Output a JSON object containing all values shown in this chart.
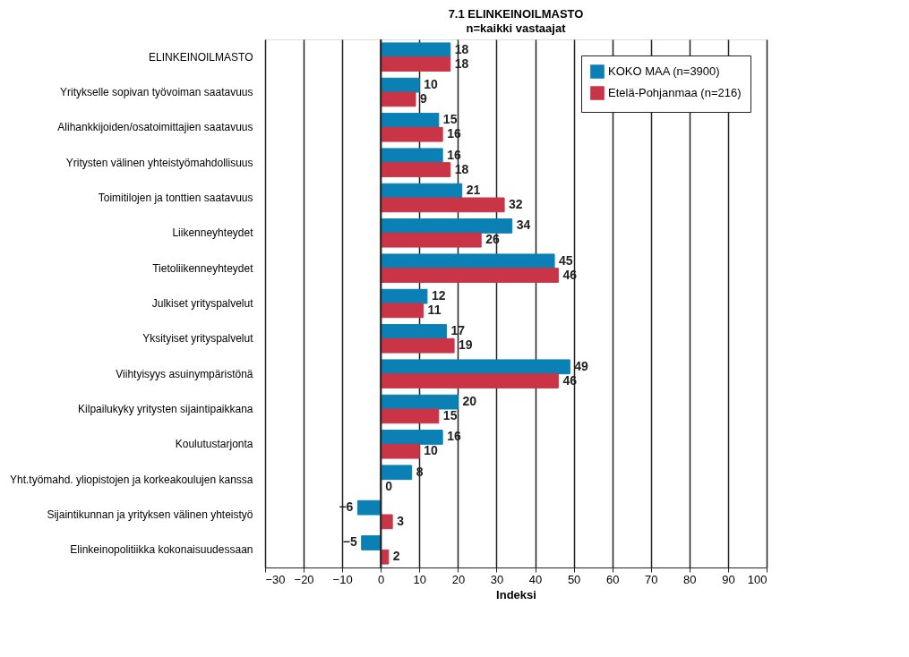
{
  "chart_data": {
    "type": "bar",
    "orientation": "horizontal",
    "title": "7.1 ELINKEINOILMASTO",
    "subtitle": "n=kaikki vastaajat",
    "xlabel": "Indeksi",
    "categories": [
      "ELINKEINOILMASTO",
      "Yritykselle sopivan työvoiman saatavuus",
      "Alihankkijoiden/osatoimittajien saatavuus",
      "Yritysten välinen yhteistyömahdollisuus",
      "Toimitilojen ja tonttien saatavuus",
      "Liikenneyhteydet",
      "Tietoliikenneyhteydet",
      "Julkiset yrityspalvelut",
      "Yksityiset yrityspalvelut",
      "Viihtyisyys asuinympäristönä",
      "Kilpailukyky yritysten sijaintipaikkana",
      "Koulutustarjonta",
      "Yht.työmahd. yliopistojen ja korkeakoulujen kanssa",
      "Sijaintikunnan ja yrityksen välinen yhteistyö",
      "Elinkeinopolitiikka kokonaisuudessaan"
    ],
    "series": [
      {
        "name": "KOKO MAA (n=3900)",
        "color": "#0a80b4",
        "values": [
          18,
          10,
          15,
          16,
          21,
          34,
          45,
          12,
          17,
          49,
          20,
          16,
          8,
          -6,
          -5
        ]
      },
      {
        "name": "Etelä-Pohjanmaa (n=216)",
        "color": "#c93447",
        "values": [
          18,
          9,
          16,
          18,
          32,
          26,
          46,
          11,
          19,
          46,
          15,
          10,
          0,
          3,
          2
        ]
      }
    ],
    "xlim": [
      -30,
      100
    ],
    "xticks": [
      -30,
      -20,
      -10,
      0,
      10,
      20,
      30,
      40,
      50,
      60,
      70,
      80,
      90,
      100
    ],
    "grid": "x",
    "legend": "top right",
    "data_labels": true
  }
}
